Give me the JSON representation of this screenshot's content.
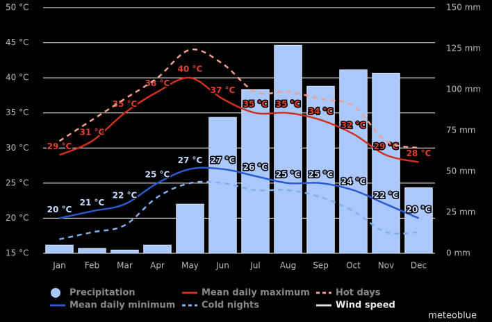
{
  "chart_data": {
    "type": "combo",
    "categories": [
      "Jan",
      "Feb",
      "Mar",
      "Apr",
      "May",
      "Jun",
      "Jul",
      "Aug",
      "Sep",
      "Oct",
      "Nov",
      "Dec"
    ],
    "ylim": [
      15,
      50
    ],
    "yticks": [
      {
        "value": 15,
        "label": "15 °C"
      },
      {
        "value": 20,
        "label": "20 °C"
      },
      {
        "value": 25,
        "label": "25 °C"
      },
      {
        "value": 30,
        "label": "30 °C"
      },
      {
        "value": 35,
        "label": "35 °C"
      },
      {
        "value": 40,
        "label": "40 °C"
      },
      {
        "value": 45,
        "label": "45 °C"
      },
      {
        "value": 50,
        "label": "50 °C"
      }
    ],
    "y2lim": [
      0,
      150
    ],
    "y2ticks": [
      {
        "value": 0,
        "label": "0 mm"
      },
      {
        "value": 25,
        "label": "25 mm"
      },
      {
        "value": 50,
        "label": "50 mm"
      },
      {
        "value": 75,
        "label": "75 mm"
      },
      {
        "value": 100,
        "label": "100 mm"
      },
      {
        "value": 125,
        "label": "125 mm"
      },
      {
        "value": 150,
        "label": "150 mm"
      }
    ],
    "grid": true,
    "series": [
      {
        "name": "Precipitation",
        "type": "bar",
        "axis": "y2",
        "color": "#aac8fb",
        "values": [
          5,
          3,
          2,
          5,
          30,
          83,
          100,
          127,
          102,
          112,
          110,
          40
        ]
      },
      {
        "name": "Mean daily maximum",
        "type": "line",
        "color": "#d0301e",
        "label_color": "#e04030",
        "values": [
          29,
          31,
          35,
          38,
          40,
          37,
          35,
          35,
          34,
          32,
          29,
          28
        ],
        "value_labels": [
          "29 °C",
          "31 °C",
          "35 °C",
          "38 °C",
          "40 °C",
          "37 °C",
          "35 °C",
          "35 °C",
          "34 °C",
          "32 °C",
          "29 °C",
          "28 °C"
        ]
      },
      {
        "name": "Hot days",
        "type": "line",
        "dashed": true,
        "color": "#f4a090",
        "values": [
          31,
          34,
          37,
          40,
          44,
          42,
          38,
          38,
          37,
          36,
          31,
          30
        ]
      },
      {
        "name": "Mean daily minimum",
        "type": "line",
        "color": "#2a5ad0",
        "label_color": "#c8dcff",
        "values": [
          20,
          21,
          22,
          25,
          27,
          27,
          26,
          25,
          25,
          24,
          22,
          20
        ],
        "value_labels": [
          "20 °C",
          "21 °C",
          "22 °C",
          "25 °C",
          "27 °C",
          "27 °C",
          "26 °C",
          "25 °C",
          "25 °C",
          "24 °C",
          "22 °C",
          "20 °C"
        ]
      },
      {
        "name": "Cold nights",
        "type": "line",
        "dashed": true,
        "color": "#80b0f0",
        "values": [
          17,
          18,
          19,
          23,
          25,
          25,
          24,
          24,
          23,
          21,
          18,
          18
        ]
      },
      {
        "name": "Wind speed",
        "type": "line",
        "color": "#dddddd",
        "values": [
          null,
          null,
          null,
          null,
          null,
          null,
          null,
          null,
          null,
          null,
          null,
          null
        ]
      }
    ],
    "source": "meteoblue"
  }
}
